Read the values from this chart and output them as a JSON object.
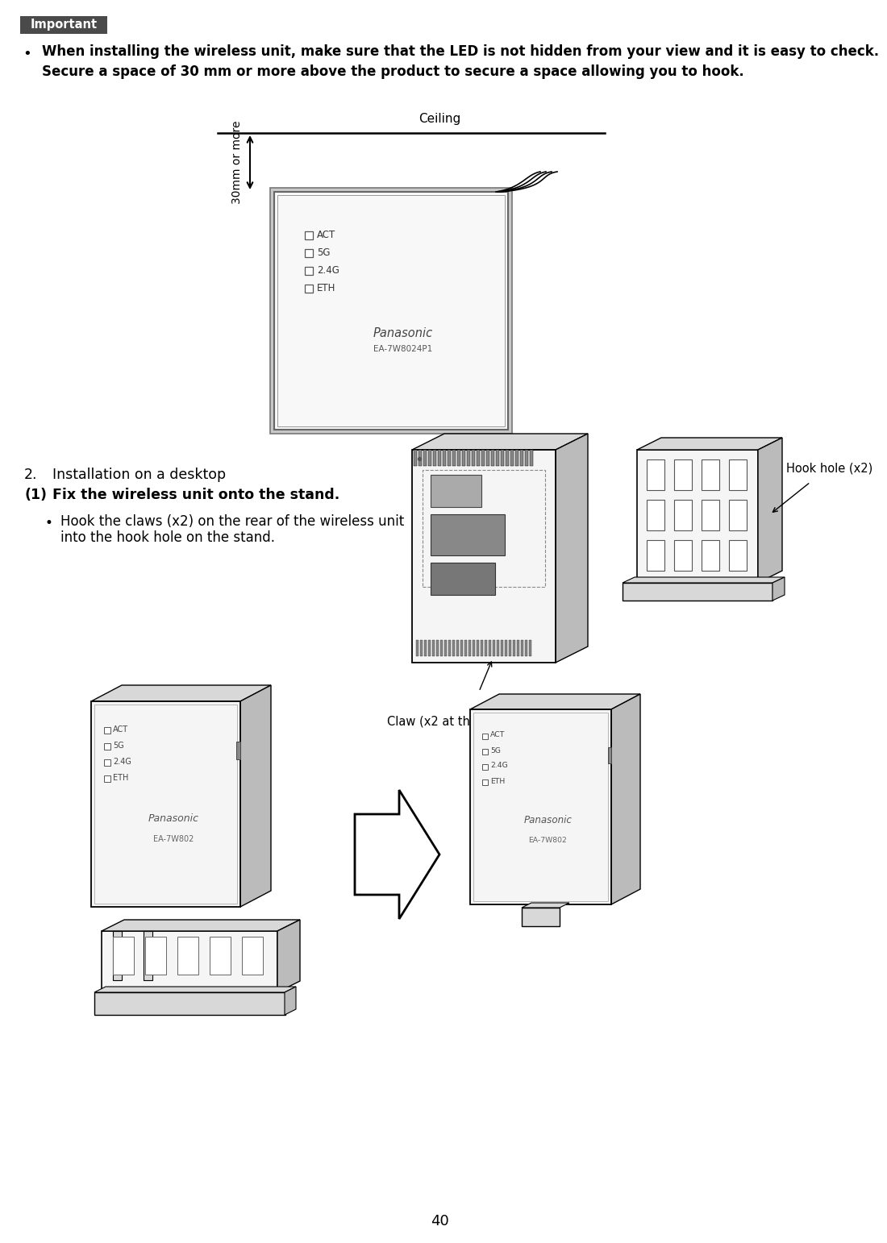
{
  "bg_color": "#ffffff",
  "page_number": "40",
  "important_label": "Important",
  "important_bg": "#4a4a4a",
  "important_text_color": "#ffffff",
  "bullet_line1": "When installing the wireless unit, make sure that the LED is not hidden from your view and it is easy to check.",
  "bullet_line2": "Secure a space of 30 mm or more above the product to secure a space allowing you to hook.",
  "ceiling_label": "Ceiling",
  "mm_label": "30mm or more",
  "section2_header": "2.",
  "section2_text": "Installation on a desktop",
  "section_sub_num": "(1)",
  "section_sub_text": "Fix the wireless unit onto the stand.",
  "bullet2_line1": "Hook the claws (x2) on the rear of the wireless unit",
  "bullet2_line2": "into the hook hole on the stand.",
  "claw_label": "Claw (x2 at the lower side)",
  "hook_label": "Hook hole (x2)",
  "led_labels": [
    "ACT",
    "5G",
    "2.4G",
    "ETH"
  ],
  "panasonic_text": "Panasonic",
  "model_text": "EA-7W8024P1",
  "line_color": "#000000",
  "light_gray": "#d8d8d8",
  "mid_gray": "#bbbbbb",
  "dark_gray": "#888888",
  "face_color": "#f5f5f5"
}
